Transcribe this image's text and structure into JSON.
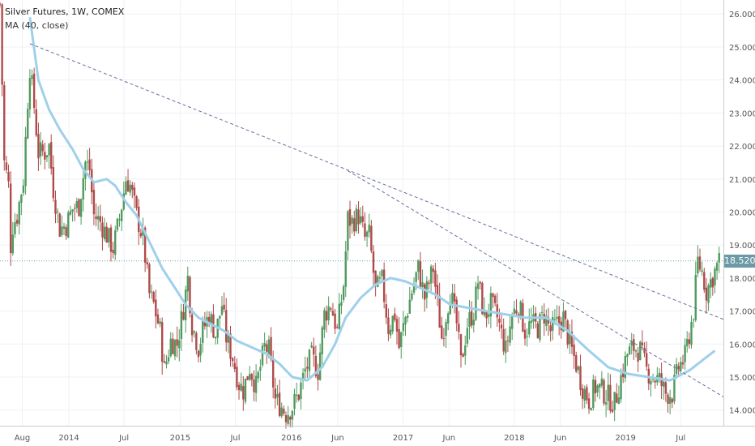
{
  "chart_data": {
    "type": "candlestick",
    "title": "Silver Futures, 1W, COMEX",
    "indicator_label": "MA (40, close)",
    "last_price": "18.520",
    "y_ticks": [
      "26.000",
      "25.000",
      "24.000",
      "23.000",
      "22.000",
      "21.000",
      "20.000",
      "19.000",
      "18.000",
      "17.000",
      "16.000",
      "15.000",
      "14.000"
    ],
    "ylim": [
      13.6,
      26.35
    ],
    "x_ticks": [
      {
        "label": "Aug",
        "date": "2013-08"
      },
      {
        "label": "2014",
        "date": "2014-01"
      },
      {
        "label": "Jul",
        "date": "2014-07"
      },
      {
        "label": "2015",
        "date": "2015-01"
      },
      {
        "label": "Jul",
        "date": "2015-07"
      },
      {
        "label": "2016",
        "date": "2016-01"
      },
      {
        "label": "Jun",
        "date": "2016-06"
      },
      {
        "label": "2017",
        "date": "2017-01"
      },
      {
        "label": "Jun",
        "date": "2017-06"
      },
      {
        "label": "2018",
        "date": "2018-01"
      },
      {
        "label": "Jun",
        "date": "2018-06"
      },
      {
        "label": "2019",
        "date": "2019-01"
      },
      {
        "label": "Jul",
        "date": "2019-07"
      }
    ],
    "xlim": [
      "2013-05-20",
      "2019-11-18"
    ],
    "trendlines": [
      {
        "from": {
          "date": "2013-08-26",
          "value": 25.1
        },
        "to": {
          "date": "2019-11-18",
          "value": 16.75
        }
      },
      {
        "from": {
          "date": "2016-07-04",
          "value": 21.25
        },
        "to": {
          "date": "2019-11-18",
          "value": 14.4
        }
      }
    ],
    "price_line": 18.52,
    "price_path": [
      [
        "2013-05-20",
        26.3
      ],
      [
        "2013-06-03",
        21.5
      ],
      [
        "2013-06-17",
        20.8
      ],
      [
        "2013-06-24",
        19.0
      ],
      [
        "2013-07-01",
        19.6
      ],
      [
        "2013-07-15",
        19.9
      ],
      [
        "2013-08-05",
        21.0
      ],
      [
        "2013-08-19",
        23.4
      ],
      [
        "2013-08-26",
        24.4
      ],
      [
        "2013-09-09",
        23.2
      ],
      [
        "2013-09-23",
        21.8
      ],
      [
        "2013-10-14",
        21.8
      ],
      [
        "2013-10-28",
        22.0
      ],
      [
        "2013-11-11",
        20.7
      ],
      [
        "2013-12-02",
        19.5
      ],
      [
        "2013-12-23",
        19.6
      ],
      [
        "2014-01-13",
        20.1
      ],
      [
        "2014-02-03",
        20.2
      ],
      [
        "2014-02-24",
        21.5
      ],
      [
        "2014-03-10",
        21.3
      ],
      [
        "2014-03-24",
        19.9
      ],
      [
        "2014-04-14",
        19.7
      ],
      [
        "2014-05-05",
        19.3
      ],
      [
        "2014-05-26",
        18.9
      ],
      [
        "2014-06-16",
        19.8
      ],
      [
        "2014-07-07",
        21.0
      ],
      [
        "2014-07-21",
        20.8
      ],
      [
        "2014-08-11",
        19.9
      ],
      [
        "2014-09-01",
        19.2
      ],
      [
        "2014-09-22",
        17.5
      ],
      [
        "2014-10-06",
        17.2
      ],
      [
        "2014-10-27",
        16.4
      ],
      [
        "2014-11-10",
        15.2
      ],
      [
        "2014-12-01",
        16.1
      ],
      [
        "2014-12-22",
        16.0
      ],
      [
        "2015-01-12",
        17.1
      ],
      [
        "2015-01-26",
        18.0
      ],
      [
        "2015-02-09",
        16.6
      ],
      [
        "2015-03-02",
        15.9
      ],
      [
        "2015-03-16",
        16.4
      ],
      [
        "2015-04-06",
        16.9
      ],
      [
        "2015-04-27",
        16.3
      ],
      [
        "2015-05-18",
        17.2
      ],
      [
        "2015-06-01",
        16.2
      ],
      [
        "2015-06-22",
        15.6
      ],
      [
        "2015-07-13",
        14.8
      ],
      [
        "2015-07-27",
        14.6
      ],
      [
        "2015-08-17",
        15.3
      ],
      [
        "2015-09-07",
        14.7
      ],
      [
        "2015-10-05",
        15.9
      ],
      [
        "2015-10-19",
        15.8
      ],
      [
        "2015-11-09",
        14.3
      ],
      [
        "2015-11-30",
        14.1
      ],
      [
        "2015-12-14",
        13.9
      ],
      [
        "2016-01-04",
        14.1
      ],
      [
        "2016-01-25",
        14.5
      ],
      [
        "2016-02-15",
        15.2
      ],
      [
        "2016-03-07",
        15.6
      ],
      [
        "2016-03-28",
        15.2
      ],
      [
        "2016-04-18",
        16.9
      ],
      [
        "2016-05-09",
        17.2
      ],
      [
        "2016-05-30",
        16.4
      ],
      [
        "2016-06-20",
        17.8
      ],
      [
        "2016-07-04",
        19.8
      ],
      [
        "2016-07-18",
        19.7
      ],
      [
        "2016-08-08",
        19.9
      ],
      [
        "2016-08-29",
        19.2
      ],
      [
        "2016-09-12",
        19.3
      ],
      [
        "2016-10-03",
        17.6
      ],
      [
        "2016-10-24",
        17.9
      ],
      [
        "2016-11-14",
        16.5
      ],
      [
        "2016-12-05",
        16.9
      ],
      [
        "2016-12-19",
        15.9
      ],
      [
        "2017-01-09",
        16.8
      ],
      [
        "2017-01-30",
        17.6
      ],
      [
        "2017-02-20",
        18.3
      ],
      [
        "2017-03-13",
        17.4
      ],
      [
        "2017-04-10",
        18.3
      ],
      [
        "2017-04-24",
        17.2
      ],
      [
        "2017-05-08",
        16.2
      ],
      [
        "2017-06-05",
        17.6
      ],
      [
        "2017-06-26",
        16.6
      ],
      [
        "2017-07-10",
        15.4
      ],
      [
        "2017-07-31",
        16.6
      ],
      [
        "2017-08-21",
        17.0
      ],
      [
        "2017-09-04",
        17.9
      ],
      [
        "2017-09-25",
        16.8
      ],
      [
        "2017-10-16",
        17.2
      ],
      [
        "2017-11-06",
        16.8
      ],
      [
        "2017-12-04",
        15.8
      ],
      [
        "2017-12-25",
        16.9
      ],
      [
        "2018-01-15",
        17.2
      ],
      [
        "2018-02-05",
        16.4
      ],
      [
        "2018-02-26",
        16.6
      ],
      [
        "2018-03-19",
        16.5
      ],
      [
        "2018-04-09",
        16.9
      ],
      [
        "2018-04-30",
        16.4
      ],
      [
        "2018-05-21",
        16.6
      ],
      [
        "2018-06-11",
        16.8
      ],
      [
        "2018-07-02",
        16.0
      ],
      [
        "2018-07-23",
        15.4
      ],
      [
        "2018-08-13",
        14.7
      ],
      [
        "2018-09-03",
        14.3
      ],
      [
        "2018-09-24",
        14.7
      ],
      [
        "2018-10-15",
        14.6
      ],
      [
        "2018-11-05",
        14.4
      ],
      [
        "2018-11-26",
        14.2
      ],
      [
        "2018-12-17",
        15.0
      ],
      [
        "2019-01-07",
        15.7
      ],
      [
        "2019-01-28",
        15.9
      ],
      [
        "2019-02-18",
        15.8
      ],
      [
        "2019-03-11",
        15.2
      ],
      [
        "2019-04-01",
        15.0
      ],
      [
        "2019-04-22",
        14.9
      ],
      [
        "2019-05-13",
        14.5
      ],
      [
        "2019-06-03",
        14.5
      ],
      [
        "2019-06-24",
        15.3
      ],
      [
        "2019-07-15",
        15.6
      ],
      [
        "2019-07-29",
        16.3
      ],
      [
        "2019-08-12",
        17.0
      ],
      [
        "2019-08-26",
        18.5
      ],
      [
        "2019-09-09",
        18.2
      ],
      [
        "2019-09-23",
        17.6
      ],
      [
        "2019-10-07",
        17.9
      ],
      [
        "2019-10-21",
        18.2
      ],
      [
        "2019-11-04",
        18.5
      ]
    ],
    "ma_path": [
      [
        "2013-08-26",
        25.9
      ],
      [
        "2013-09-23",
        24.0
      ],
      [
        "2013-10-28",
        23.1
      ],
      [
        "2013-12-02",
        22.5
      ],
      [
        "2014-01-13",
        21.9
      ],
      [
        "2014-02-17",
        21.3
      ],
      [
        "2014-03-24",
        20.9
      ],
      [
        "2014-05-05",
        21.0
      ],
      [
        "2014-06-02",
        20.8
      ],
      [
        "2014-07-07",
        20.3
      ],
      [
        "2014-08-11",
        19.9
      ],
      [
        "2014-09-22",
        19.1
      ],
      [
        "2014-11-03",
        18.3
      ],
      [
        "2014-12-15",
        17.7
      ],
      [
        "2015-01-19",
        17.2
      ],
      [
        "2015-03-02",
        16.8
      ],
      [
        "2015-04-13",
        16.6
      ],
      [
        "2015-05-25",
        16.4
      ],
      [
        "2015-07-06",
        16.1
      ],
      [
        "2015-08-24",
        15.9
      ],
      [
        "2015-10-12",
        15.7
      ],
      [
        "2015-11-23",
        15.4
      ],
      [
        "2016-01-04",
        15.0
      ],
      [
        "2016-02-22",
        14.9
      ],
      [
        "2016-04-11",
        15.3
      ],
      [
        "2016-05-23",
        16.0
      ],
      [
        "2016-06-27",
        16.8
      ],
      [
        "2016-08-15",
        17.4
      ],
      [
        "2016-10-03",
        17.8
      ],
      [
        "2016-11-21",
        18.0
      ],
      [
        "2017-01-09",
        17.9
      ],
      [
        "2017-02-27",
        17.7
      ],
      [
        "2017-04-17",
        17.5
      ],
      [
        "2017-06-05",
        17.2
      ],
      [
        "2017-07-31",
        17.1
      ],
      [
        "2017-10-02",
        17.0
      ],
      [
        "2017-12-04",
        16.9
      ],
      [
        "2018-02-05",
        16.8
      ],
      [
        "2018-04-16",
        16.8
      ],
      [
        "2018-06-25",
        16.4
      ],
      [
        "2018-09-03",
        15.8
      ],
      [
        "2018-11-05",
        15.3
      ],
      [
        "2019-01-07",
        15.1
      ],
      [
        "2019-03-18",
        15.0
      ],
      [
        "2019-05-27",
        14.9
      ],
      [
        "2019-07-29",
        15.2
      ],
      [
        "2019-09-23",
        15.6
      ],
      [
        "2019-10-21",
        15.8
      ]
    ],
    "colors": {
      "up": "#4f9a5e",
      "down": "#b04a4a",
      "ma": "#9fd0ea",
      "trendline": "#6a7099",
      "price_line": "#6aa3a3",
      "price_tag": "#6a9aa6",
      "axis_text": "#555555",
      "grid": "#eef1f4"
    },
    "grid": true
  }
}
